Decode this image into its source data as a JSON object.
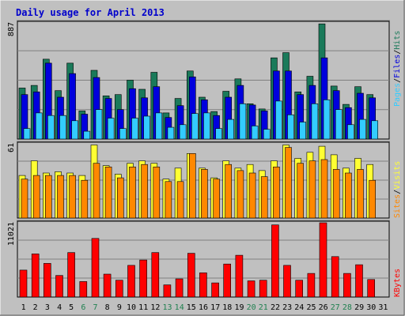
{
  "title": "Daily usage for April 2013",
  "colors": {
    "hits": "#1a7a5a",
    "files": "#0000dd",
    "pages": "#33ccff",
    "visits": "#ffff33",
    "sites": "#ff8800",
    "kbytes": "#ff0000",
    "weekend_label": "#208050",
    "weekday_label": "#000000",
    "legend_separator": "#000000",
    "title_color": "#0000cc",
    "panel_bg": "#c0c0c0",
    "grid": "#808080"
  },
  "legend": {
    "pages": "Pages",
    "files": "Files",
    "hits": "Hits",
    "sites": "Sites",
    "visits": "Visits",
    "kbytes": "KBytes",
    "sep": "/"
  },
  "chart_data": [
    {
      "type": "bar",
      "panel": "hits-files-pages",
      "ymax_label": "887",
      "ylim": [
        0,
        887
      ],
      "categories": [
        "1",
        "2",
        "3",
        "4",
        "5",
        "6",
        "7",
        "8",
        "9",
        "10",
        "11",
        "12",
        "13",
        "14",
        "15",
        "16",
        "17",
        "18",
        "19",
        "20",
        "21",
        "22",
        "23",
        "24",
        "25",
        "26",
        "27",
        "28",
        "29",
        "30",
        "31"
      ],
      "series": [
        {
          "name": "Hits",
          "color_key": "hits",
          "values": [
            390,
            410,
            610,
            370,
            580,
            215,
            525,
            330,
            340,
            450,
            380,
            510,
            200,
            310,
            520,
            320,
            210,
            365,
            460,
            270,
            230,
            620,
            660,
            360,
            480,
            880,
            405,
            265,
            400,
            340,
            0
          ]
        },
        {
          "name": "Files",
          "color_key": "files",
          "values": [
            340,
            360,
            580,
            320,
            500,
            190,
            470,
            310,
            225,
            385,
            315,
            400,
            165,
            255,
            475,
            300,
            180,
            320,
            410,
            260,
            215,
            520,
            520,
            340,
            410,
            620,
            370,
            240,
            350,
            315,
            0
          ]
        },
        {
          "name": "Pages",
          "color_key": "pages",
          "values": [
            80,
            200,
            180,
            180,
            140,
            60,
            225,
            160,
            80,
            160,
            175,
            200,
            90,
            110,
            195,
            200,
            80,
            150,
            270,
            100,
            75,
            290,
            185,
            130,
            270,
            300,
            225,
            110,
            150,
            140,
            0
          ]
        }
      ]
    },
    {
      "type": "bar",
      "panel": "visits-sites",
      "ymax_label": "61",
      "ylim": [
        0,
        61
      ],
      "categories": [
        "1",
        "2",
        "3",
        "4",
        "5",
        "6",
        "7",
        "8",
        "9",
        "10",
        "11",
        "12",
        "13",
        "14",
        "15",
        "16",
        "17",
        "18",
        "19",
        "20",
        "21",
        "22",
        "23",
        "24",
        "25",
        "26",
        "27",
        "28",
        "29",
        "30",
        "31"
      ],
      "series": [
        {
          "name": "Visits",
          "color_key": "visits",
          "values": [
            35,
            47,
            37,
            38,
            37,
            35,
            60,
            43,
            36,
            45,
            47,
            45,
            32,
            41,
            53,
            41,
            33,
            47,
            41,
            44,
            39,
            47,
            60,
            49,
            54,
            59,
            52,
            41,
            49,
            44,
            0
          ]
        },
        {
          "name": "Sites",
          "color_key": "sites",
          "values": [
            32,
            35,
            35,
            35,
            35,
            31,
            45,
            42,
            33,
            42,
            44,
            42,
            30,
            30,
            53,
            40,
            32,
            44,
            39,
            37,
            34,
            42,
            58,
            45,
            47,
            48,
            40,
            37,
            40,
            31,
            0
          ]
        }
      ]
    },
    {
      "type": "bar",
      "panel": "kbytes",
      "ymax_label": "11021",
      "ylim": [
        0,
        11021
      ],
      "categories": [
        "1",
        "2",
        "3",
        "4",
        "5",
        "6",
        "7",
        "8",
        "9",
        "10",
        "11",
        "12",
        "13",
        "14",
        "15",
        "16",
        "17",
        "18",
        "19",
        "20",
        "21",
        "22",
        "23",
        "24",
        "25",
        "26",
        "27",
        "28",
        "29",
        "30",
        "31"
      ],
      "series": [
        {
          "name": "KBytes",
          "color_key": "kbytes",
          "values": [
            4000,
            6400,
            5000,
            3200,
            6600,
            2300,
            8700,
            3400,
            2500,
            4700,
            5500,
            6600,
            1800,
            2700,
            6500,
            3600,
            2100,
            4900,
            6200,
            2400,
            2500,
            10700,
            4700,
            2500,
            3500,
            11021,
            6000,
            3500,
            4800,
            2600,
            0
          ]
        }
      ]
    }
  ],
  "xaxis": {
    "labels": [
      "1",
      "2",
      "3",
      "4",
      "5",
      "6",
      "7",
      "8",
      "9",
      "10",
      "11",
      "12",
      "13",
      "14",
      "15",
      "16",
      "17",
      "18",
      "19",
      "20",
      "21",
      "22",
      "23",
      "24",
      "25",
      "26",
      "27",
      "28",
      "29",
      "30",
      "31"
    ],
    "weekend_days": [
      6,
      7,
      13,
      14,
      20,
      21,
      27,
      28
    ]
  }
}
